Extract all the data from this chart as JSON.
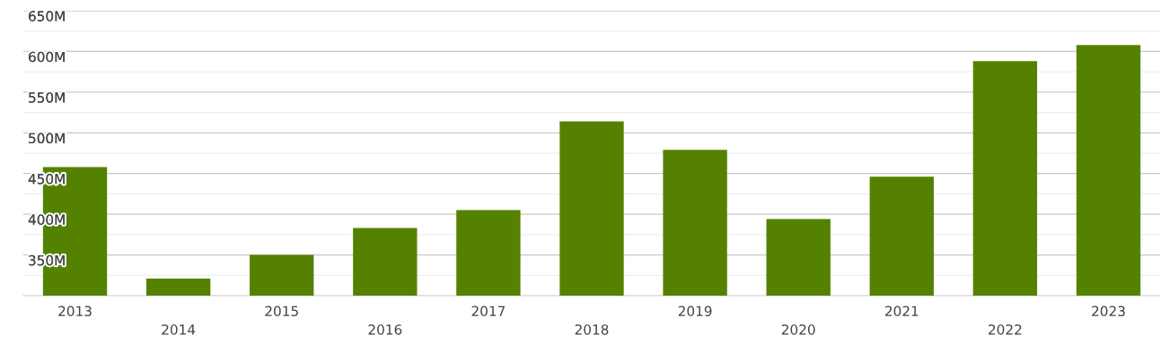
{
  "chart_data": {
    "type": "bar",
    "categories": [
      "2013",
      "2014",
      "2015",
      "2016",
      "2017",
      "2018",
      "2019",
      "2020",
      "2021",
      "2022",
      "2023"
    ],
    "values": [
      458,
      321,
      350,
      383,
      405,
      514,
      479,
      394,
      446,
      588,
      608
    ],
    "color": "#548200",
    "ylim": [
      300,
      650
    ],
    "yticks": [
      {
        "value": 325,
        "label": null
      },
      {
        "value": 350,
        "label": "350M"
      },
      {
        "value": 375,
        "label": null
      },
      {
        "value": 400,
        "label": "400M"
      },
      {
        "value": 425,
        "label": null
      },
      {
        "value": 450,
        "label": "450M"
      },
      {
        "value": 475,
        "label": null
      },
      {
        "value": 500,
        "label": "500M"
      },
      {
        "value": 525,
        "label": null
      },
      {
        "value": 550,
        "label": "550M"
      },
      {
        "value": 575,
        "label": null
      },
      {
        "value": 600,
        "label": "600M"
      },
      {
        "value": 625,
        "label": null
      },
      {
        "value": 650,
        "label": "650M"
      }
    ],
    "grid": "y"
  }
}
